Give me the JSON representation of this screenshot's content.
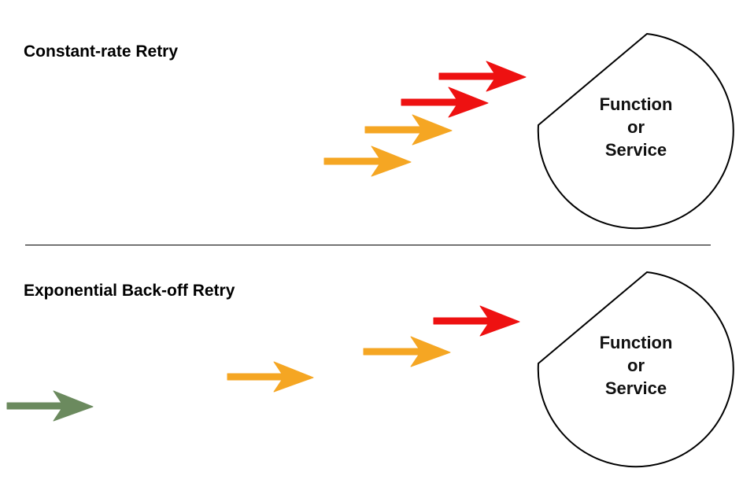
{
  "colors": {
    "red": "#ee1111",
    "orange": "#f5a623",
    "green": "#6b8a5e"
  },
  "panels": [
    {
      "title": "Constant-rate Retry",
      "target": {
        "line1": "Function",
        "line2": "or",
        "line3": "Service"
      },
      "arrows": [
        {
          "color": "orange"
        },
        {
          "color": "orange"
        },
        {
          "color": "red"
        },
        {
          "color": "red"
        }
      ]
    },
    {
      "title": "Exponential Back-off Retry",
      "target": {
        "line1": "Function",
        "line2": "or",
        "line3": "Service"
      },
      "arrows": [
        {
          "color": "green"
        },
        {
          "color": "orange"
        },
        {
          "color": "orange"
        },
        {
          "color": "red"
        }
      ]
    }
  ]
}
